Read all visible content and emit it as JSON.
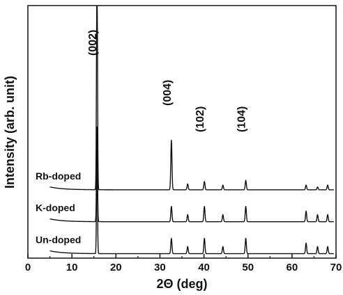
{
  "chart_data": {
    "type": "line",
    "xlabel": "2Θ (deg)",
    "ylabel": "Intensity (arb. unit)",
    "xlim": [
      0,
      70
    ],
    "x_ticks": [
      0,
      10,
      20,
      30,
      40,
      50,
      60,
      70
    ],
    "y_ticks_shown": false,
    "grid": false,
    "line_color": "#111111",
    "peak_labels": [
      {
        "text": "(002)",
        "x": 15.7
      },
      {
        "text": "(004)",
        "x": 32.6
      },
      {
        "text": "(102)",
        "x": 40.1
      },
      {
        "text": "(104)",
        "x": 49.5
      }
    ],
    "series": [
      {
        "name": "Rb-doped",
        "baseline": 0.28,
        "peaks": [
          {
            "x": 15.7,
            "y": 1.0
          },
          {
            "x": 32.6,
            "y": 0.21
          },
          {
            "x": 36.3,
            "y": 0.025
          },
          {
            "x": 40.1,
            "y": 0.035
          },
          {
            "x": 44.3,
            "y": 0.02
          },
          {
            "x": 49.5,
            "y": 0.04
          },
          {
            "x": 63.2,
            "y": 0.02
          },
          {
            "x": 65.8,
            "y": 0.012
          },
          {
            "x": 68.1,
            "y": 0.02
          }
        ]
      },
      {
        "name": "K-doped",
        "baseline": 0.145,
        "peaks": [
          {
            "x": 15.7,
            "y": 0.4
          },
          {
            "x": 32.6,
            "y": 0.065
          },
          {
            "x": 36.3,
            "y": 0.03
          },
          {
            "x": 40.1,
            "y": 0.065
          },
          {
            "x": 44.3,
            "y": 0.03
          },
          {
            "x": 49.5,
            "y": 0.065
          },
          {
            "x": 63.2,
            "y": 0.045
          },
          {
            "x": 65.8,
            "y": 0.03
          },
          {
            "x": 68.1,
            "y": 0.03
          }
        ]
      },
      {
        "name": "Un-doped",
        "baseline": 0.01,
        "peaks": [
          {
            "x": 15.7,
            "y": 0.4
          },
          {
            "x": 32.6,
            "y": 0.065
          },
          {
            "x": 36.3,
            "y": 0.03
          },
          {
            "x": 40.1,
            "y": 0.065
          },
          {
            "x": 44.3,
            "y": 0.03
          },
          {
            "x": 49.5,
            "y": 0.065
          },
          {
            "x": 63.2,
            "y": 0.045
          },
          {
            "x": 65.8,
            "y": 0.03
          },
          {
            "x": 68.1,
            "y": 0.03
          }
        ]
      }
    ]
  }
}
